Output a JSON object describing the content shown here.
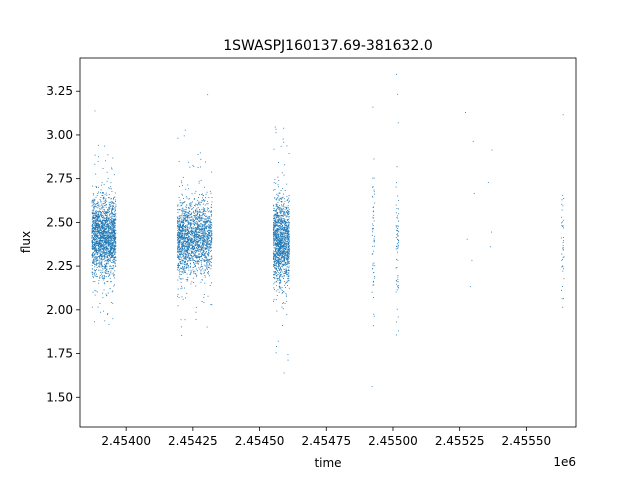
{
  "chart_data": {
    "type": "scatter",
    "title": "1SWASPJ160137.69-381632.0",
    "xlabel": "time",
    "ylabel": "flux",
    "x_offset_label": "1e6",
    "xlim": [
      2.453827,
      2.455686
    ],
    "ylim": [
      1.33,
      3.44
    ],
    "x_ticks": [
      2.454,
      2.45425,
      2.4545,
      2.45475,
      2.455,
      2.45525,
      2.4555
    ],
    "x_tick_labels": [
      "2.45400",
      "2.45425",
      "2.45450",
      "2.45475",
      "2.45500",
      "2.45525",
      "2.45550"
    ],
    "y_ticks": [
      1.5,
      1.75,
      2.0,
      2.25,
      2.5,
      2.75,
      3.0,
      3.25
    ],
    "y_tick_labels": [
      "1.50",
      "1.75",
      "2.00",
      "2.25",
      "2.50",
      "2.75",
      "3.00",
      "3.25"
    ],
    "grid": false,
    "legend": "none",
    "marker_color": "#1f77b4",
    "series": [
      {
        "clusters": [
          {
            "x_range": [
              2.45387,
              2.45396
            ],
            "center": 2.424,
            "spread": 0.15,
            "count": 1900
          },
          {
            "x_range": [
              2.45419,
              2.45423
            ],
            "center": 2.41,
            "spread": 0.15,
            "count": 700
          },
          {
            "x_range": [
              2.45423,
              2.45432
            ],
            "center": 2.42,
            "spread": 0.14,
            "count": 1200
          },
          {
            "x_range": [
              2.45455,
              2.45461
            ],
            "center": 2.4,
            "spread": 0.17,
            "count": 1400
          },
          {
            "x_range": [
              2.45492,
              2.45493
            ],
            "center": 2.4,
            "spread": 0.3,
            "count": 60
          },
          {
            "x_range": [
              2.45501,
              2.45502
            ],
            "center": 2.4,
            "spread": 0.3,
            "count": 70
          },
          {
            "x_range": [
              2.45563,
              2.45564
            ],
            "center": 2.42,
            "spread": 0.25,
            "count": 40
          },
          {
            "x_range": [
              2.45526,
              2.45537
            ],
            "center": 2.55,
            "spread": 0.4,
            "count": 10
          }
        ]
      }
    ]
  }
}
